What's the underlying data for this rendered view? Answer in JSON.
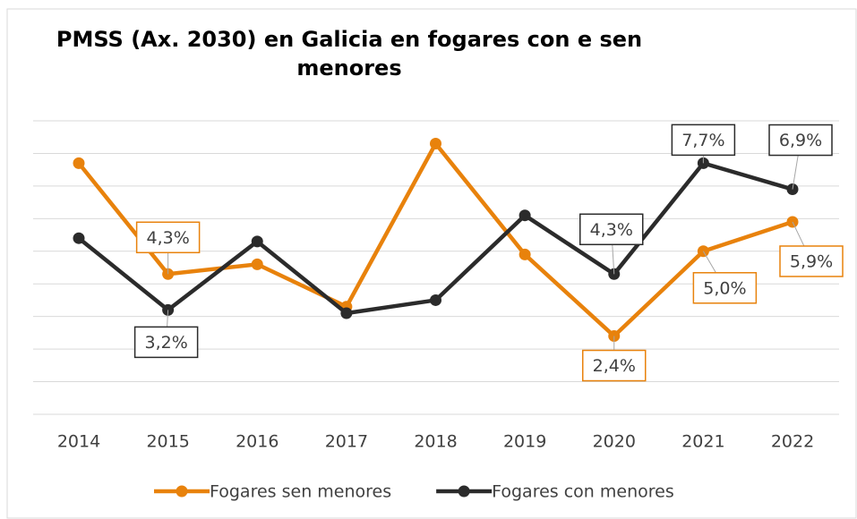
{
  "chart_data": {
    "type": "line",
    "title": "PMSS (Ax. 2030) en Galicia en fogares con e sen menores",
    "categories": [
      "2014",
      "2015",
      "2016",
      "2017",
      "2018",
      "2019",
      "2020",
      "2021",
      "2022"
    ],
    "series": [
      {
        "name": "Fogares sen menores",
        "color": "#e8820c",
        "values": [
          7.7,
          4.3,
          4.6,
          3.3,
          8.3,
          4.9,
          2.4,
          5.0,
          5.9
        ],
        "value_labels": [
          null,
          "4,3%",
          null,
          null,
          null,
          null,
          "2,4%",
          "5,0%",
          "5,9%"
        ]
      },
      {
        "name": "Fogares con menores",
        "color": "#2b2b2b",
        "values": [
          5.4,
          3.2,
          5.3,
          3.1,
          3.5,
          6.1,
          4.3,
          7.7,
          6.9
        ],
        "value_labels": [
          null,
          "3,2%",
          null,
          null,
          null,
          null,
          "4,3%",
          "7,7%",
          "6,9%"
        ]
      }
    ],
    "ylim": [
      0,
      9
    ],
    "yticks": [
      0,
      1,
      2,
      3,
      4,
      5,
      6,
      7,
      8,
      9
    ],
    "grid": true,
    "legend": "bottom"
  }
}
